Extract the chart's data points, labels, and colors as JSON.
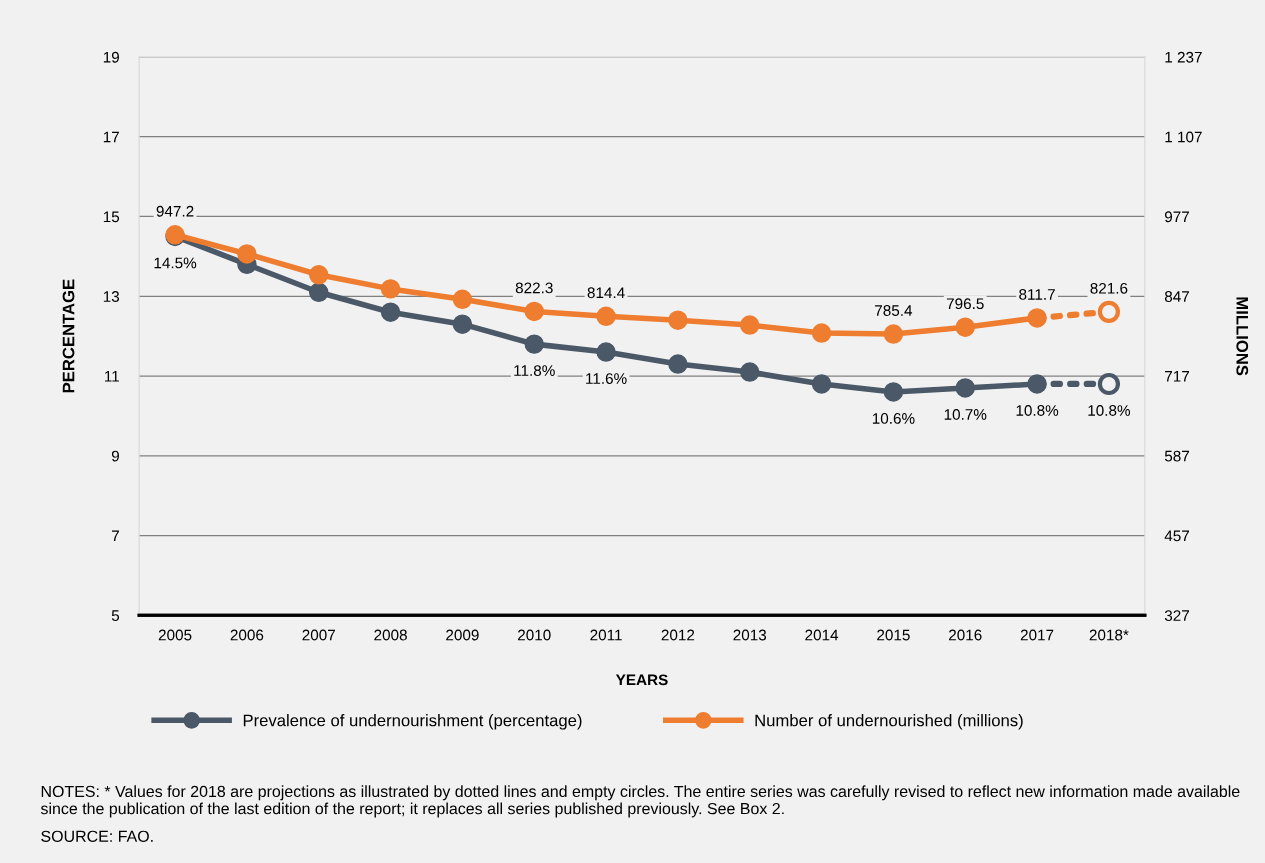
{
  "chart_data": {
    "type": "line",
    "xlabel": "YEARS",
    "ylabel": "PERCENTAGE",
    "y2label": "MILLIONS",
    "categories": [
      "2005",
      "2006",
      "2007",
      "2008",
      "2009",
      "2010",
      "2011",
      "2012",
      "2013",
      "2014",
      "2015",
      "2016",
      "2017",
      "2018*"
    ],
    "series": [
      {
        "name": "Prevalence of undernourishment (percentage)",
        "color": "#4a5868",
        "values": [
          14.5,
          13.8,
          13.1,
          12.6,
          12.3,
          11.8,
          11.6,
          11.3,
          11.1,
          10.8,
          10.6,
          10.7,
          10.8,
          null
        ],
        "value_labels": [
          "14.5%",
          null,
          null,
          null,
          null,
          "11.8%",
          "11.6%",
          null,
          null,
          null,
          "10.6%",
          "10.7%",
          "10.8%",
          null
        ],
        "marker": "circle",
        "line_style": "solid"
      },
      {
        "type": "line",
        "color": "#4a5868",
        "values": [
          null,
          null,
          null,
          null,
          null,
          null,
          null,
          null,
          null,
          null,
          null,
          null,
          10.8,
          10.8
        ],
        "value_labels": [
          null,
          null,
          null,
          null,
          null,
          null,
          null,
          null,
          null,
          null,
          null,
          null,
          null,
          "10.8%"
        ],
        "marker": "circle",
        "line_style": "dotted"
      },
      {
        "name": "Number of undernourished (millions)",
        "color": "#ee7d30",
        "axis": "y2",
        "values": [
          947.2,
          916,
          882,
          859,
          842,
          822.3,
          814.4,
          808,
          800,
          787,
          785.4,
          796.5,
          811.7,
          null
        ],
        "value_labels": [
          "947.2",
          null,
          null,
          null,
          null,
          "822.3",
          "814.4",
          null,
          null,
          null,
          "785.4",
          "796.5",
          "811.7",
          null
        ],
        "marker": "circle",
        "line_style": "solid"
      },
      {
        "type": "line",
        "color": "#ee7d30",
        "axis": "y2",
        "values": [
          null,
          null,
          null,
          null,
          null,
          null,
          null,
          null,
          null,
          null,
          null,
          null,
          811.7,
          821.6
        ],
        "value_labels": [
          null,
          null,
          null,
          null,
          null,
          null,
          null,
          null,
          null,
          null,
          null,
          null,
          null,
          "821.6"
        ],
        "marker": "circle",
        "line_style": "dotted"
      }
    ],
    "ylim": [
      5,
      19
    ],
    "yticks": [
      5,
      7,
      9,
      11,
      13,
      15,
      17,
      19
    ],
    "y2lim": [
      327,
      1237
    ],
    "y2ticks": [
      327,
      457,
      587,
      717,
      847,
      977,
      {
        "value": 1107,
        "label": "1 107"
      },
      {
        "value": 1237,
        "label": "1 237"
      }
    ],
    "grid": "y",
    "legend": "bottom",
    "annotations": [
      "NOTES: * Values for 2018 are projections as illustrated by dotted lines and empty circles. The entire series was carefully revised to reflect new information made available since the publication of the last edition of the report; it replaces all series published previously. See Box 2.",
      "SOURCE: FAO."
    ]
  }
}
